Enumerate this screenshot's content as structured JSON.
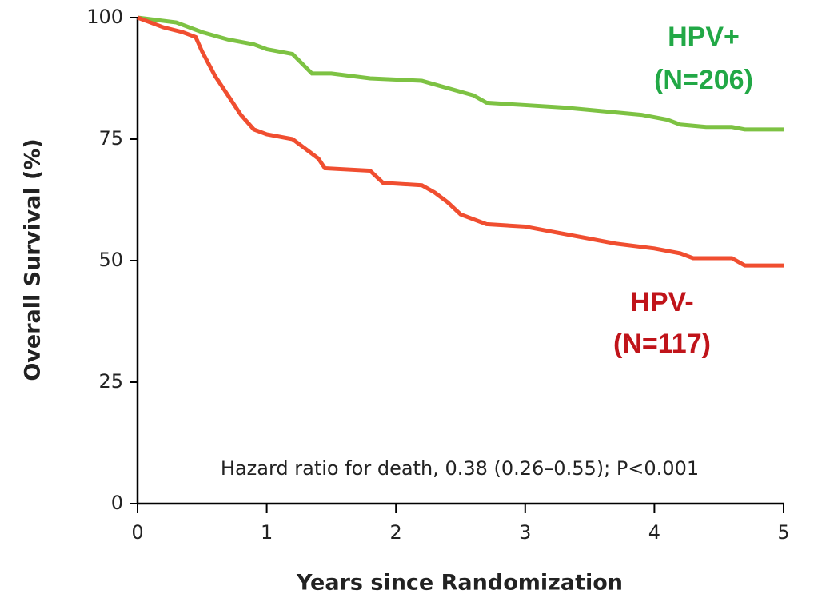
{
  "chart_data": {
    "type": "line",
    "xlabel": "Years since Randomization",
    "ylabel": "Overall Survival (%)",
    "annotation": "Hazard ratio for death, 0.38 (0.26–0.55); P<0.001",
    "xlim": [
      0,
      5
    ],
    "xticks": [
      0,
      1,
      2,
      3,
      4,
      5
    ],
    "ylim": [
      0,
      100
    ],
    "yticks": [
      0,
      25,
      50,
      75,
      100
    ],
    "grid": false,
    "series": [
      {
        "name": "HPV+",
        "count_label": "(N=206)",
        "color": "#7dc243",
        "label_color": "#22a846",
        "x": [
          0,
          0.3,
          0.5,
          0.7,
          0.9,
          1.0,
          1.2,
          1.35,
          1.5,
          1.8,
          2.2,
          2.4,
          2.6,
          2.7,
          3.0,
          3.3,
          3.5,
          3.9,
          4.1,
          4.2,
          4.4,
          4.6,
          4.7,
          5.0
        ],
        "values": [
          100,
          99,
          97,
          95.5,
          94.5,
          93.5,
          92.5,
          88.5,
          88.5,
          87.5,
          87,
          85.5,
          84,
          82.5,
          82,
          81.5,
          81,
          80,
          79,
          78,
          77.5,
          77.5,
          77,
          77
        ]
      },
      {
        "name": "HPV-",
        "count_label": "(N=117)",
        "color": "#f04e30",
        "label_color": "#c0141a",
        "x": [
          0,
          0.1,
          0.2,
          0.35,
          0.45,
          0.5,
          0.6,
          0.7,
          0.8,
          0.9,
          1.0,
          1.2,
          1.3,
          1.4,
          1.45,
          1.8,
          1.9,
          2.2,
          2.3,
          2.4,
          2.5,
          2.7,
          3.0,
          3.2,
          3.5,
          3.7,
          4.0,
          4.2,
          4.3,
          4.6,
          4.7,
          5.0
        ],
        "values": [
          100,
          99,
          98,
          97,
          96,
          93,
          88,
          84,
          80,
          77,
          76,
          75,
          73,
          71,
          69,
          68.5,
          66,
          65.5,
          64,
          62,
          59.5,
          57.5,
          57,
          56,
          54.5,
          53.5,
          52.5,
          51.5,
          50.5,
          50.5,
          49,
          49
        ]
      }
    ]
  }
}
